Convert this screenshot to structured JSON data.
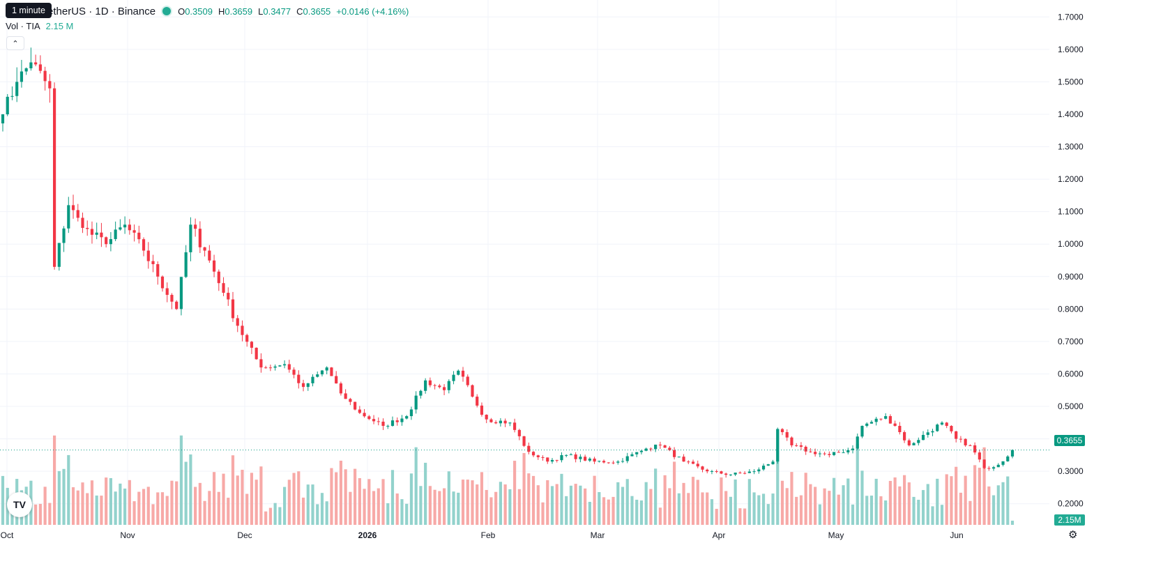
{
  "header": {
    "symbol_title": "etherUS · 1D · Binance",
    "tooltip": "1 minute",
    "ohlc": [
      {
        "key": "O",
        "value": "0.3509"
      },
      {
        "key": "H",
        "value": "0.3659"
      },
      {
        "key": "L",
        "value": "0.3477"
      },
      {
        "key": "C",
        "value": "0.3655"
      }
    ],
    "change": "+0.0146 (+4.16%)",
    "volume_label": "Vol · TIA",
    "volume_value": "2.15 M",
    "collapse_icon": "chevron-up-icon",
    "logo_text": "TV"
  },
  "price_axis": {
    "current_price_label": "0.3655",
    "current_volume_label": "2.15M"
  },
  "colors": {
    "up": "#089981",
    "down": "#f23645",
    "vol_up": "#92d2cc",
    "vol_down": "#f7a9a7",
    "grid": "#f0f3fa"
  },
  "chart_data": {
    "type": "candlestick",
    "y_axis_ticks": [
      "1.7000",
      "1.6000",
      "1.5000",
      "1.4000",
      "1.3000",
      "1.2000",
      "1.1000",
      "1.0000",
      "0.9000",
      "0.8000",
      "0.7000",
      "0.6000",
      "0.5000",
      "0.4000",
      "0.3000",
      "0.2000"
    ],
    "x_axis_labels": [
      "Oct",
      "Nov",
      "Dec",
      "2026",
      "Feb",
      "Mar",
      "Apr",
      "May",
      "Jun"
    ],
    "ylim": [
      0.135,
      1.72
    ],
    "last_close": 0.3655,
    "anchors": [
      [
        0,
        1.4
      ],
      [
        3,
        1.5
      ],
      [
        6,
        1.56
      ],
      [
        10,
        1.48
      ],
      [
        11,
        0.93
      ],
      [
        14,
        1.12
      ],
      [
        17,
        1.05
      ],
      [
        22,
        1.0
      ],
      [
        26,
        1.06
      ],
      [
        30,
        0.98
      ],
      [
        33,
        0.9
      ],
      [
        37,
        0.8
      ],
      [
        40,
        1.06
      ],
      [
        43,
        0.98
      ],
      [
        47,
        0.85
      ],
      [
        51,
        0.72
      ],
      [
        55,
        0.62
      ],
      [
        60,
        0.63
      ],
      [
        64,
        0.56
      ],
      [
        69,
        0.62
      ],
      [
        72,
        0.54
      ],
      [
        76,
        0.48
      ],
      [
        81,
        0.44
      ],
      [
        86,
        0.47
      ],
      [
        90,
        0.58
      ],
      [
        94,
        0.55
      ],
      [
        97,
        0.61
      ],
      [
        100,
        0.53
      ],
      [
        103,
        0.46
      ],
      [
        108,
        0.45
      ],
      [
        112,
        0.36
      ],
      [
        116,
        0.33
      ],
      [
        120,
        0.35
      ],
      [
        126,
        0.33
      ],
      [
        131,
        0.33
      ],
      [
        137,
        0.37
      ],
      [
        140,
        0.38
      ],
      [
        145,
        0.33
      ],
      [
        150,
        0.3
      ],
      [
        155,
        0.29
      ],
      [
        160,
        0.3
      ],
      [
        164,
        0.33
      ],
      [
        165,
        0.43
      ],
      [
        168,
        0.38
      ],
      [
        172,
        0.36
      ],
      [
        176,
        0.35
      ],
      [
        181,
        0.37
      ],
      [
        183,
        0.44
      ],
      [
        188,
        0.47
      ],
      [
        190,
        0.44
      ],
      [
        193,
        0.38
      ],
      [
        197,
        0.42
      ],
      [
        200,
        0.45
      ],
      [
        203,
        0.4
      ],
      [
        206,
        0.38
      ],
      [
        209,
        0.31
      ],
      [
        212,
        0.32
      ],
      [
        215,
        0.3655
      ]
    ]
  }
}
